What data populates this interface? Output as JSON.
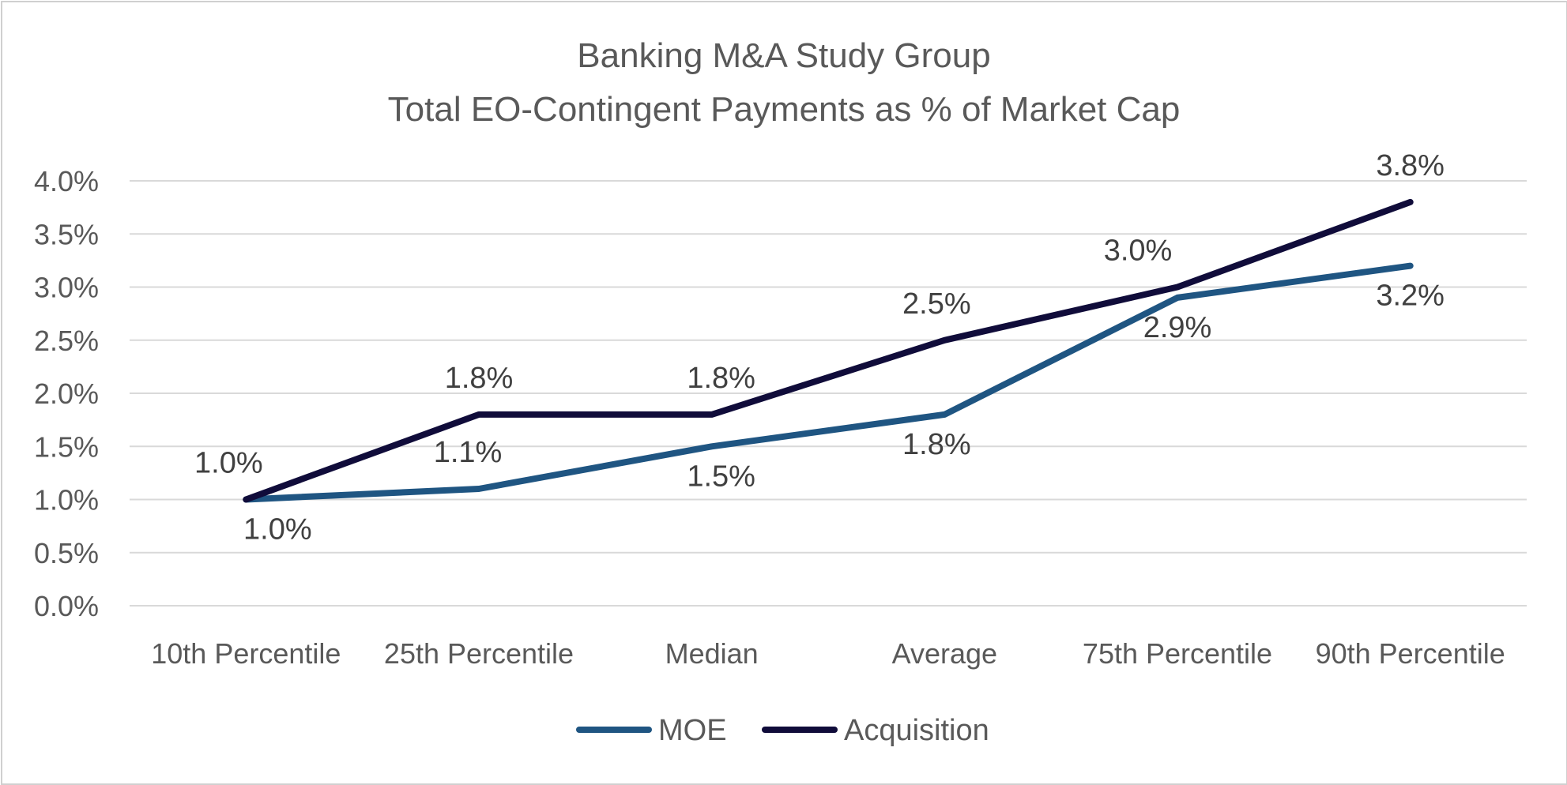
{
  "chart_data": {
    "type": "line",
    "title": "Banking M&A Study Group",
    "subtitle": "Total EO-Contingent Payments as % of Market Cap",
    "categories": [
      "10th Percentile",
      "25th Percentile",
      "Median",
      "Average",
      "75th Percentile",
      "90th Percentile"
    ],
    "series": [
      {
        "name": "MOE",
        "values": [
          1.0,
          1.1,
          1.5,
          1.8,
          2.9,
          3.2
        ],
        "labels": [
          "1.0%",
          "1.1%",
          "1.5%",
          "1.8%",
          "2.9%",
          "3.2%"
        ],
        "color": "#1f5582"
      },
      {
        "name": "Acquisition",
        "values": [
          1.0,
          1.8,
          1.8,
          2.5,
          3.0,
          3.8
        ],
        "labels": [
          "1.0%",
          "1.8%",
          "1.8%",
          "2.5%",
          "3.0%",
          "3.8%"
        ],
        "color": "#100c3a"
      }
    ],
    "ylim": [
      0,
      4.0
    ],
    "yticks": [
      0,
      0.5,
      1.0,
      1.5,
      2.0,
      2.5,
      3.0,
      3.5,
      4.0
    ],
    "ytick_labels": [
      "0.0%",
      "0.5%",
      "1.0%",
      "1.5%",
      "2.0%",
      "2.5%",
      "3.0%",
      "3.5%",
      "4.0%"
    ],
    "grid": true,
    "legend_position": "bottom",
    "gridline_color": "#d9d9d9"
  }
}
